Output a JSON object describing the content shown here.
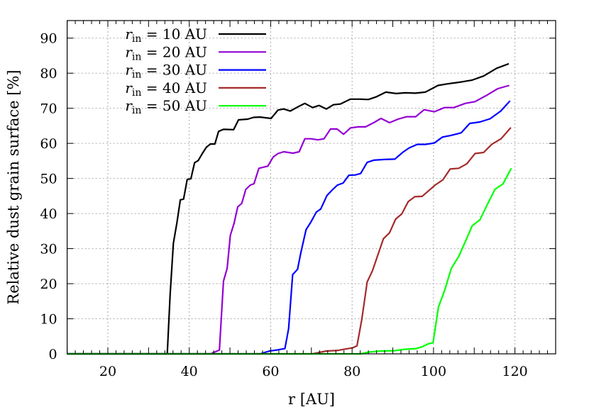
{
  "chart_data": {
    "type": "line",
    "title": "",
    "xlabel": "r [AU]",
    "ylabel": "Relative dust grain surface [%]",
    "xlim": [
      10,
      130
    ],
    "ylim": [
      0,
      95
    ],
    "xticks": [
      20,
      40,
      60,
      80,
      100,
      120
    ],
    "yticks": [
      0,
      10,
      20,
      30,
      40,
      50,
      60,
      70,
      80,
      90
    ],
    "grid": true,
    "legend_position": "top-left",
    "series": [
      {
        "name": "r_in = 10 AU",
        "color": "#000000",
        "x": [
          10,
          34.6,
          35.3,
          36.1,
          37.0,
          37.8,
          38.6,
          39.5,
          40.4,
          41.3,
          42.2,
          43.2,
          44.2,
          45.2,
          46.3,
          47.2,
          48.4,
          50.9,
          52.1,
          54.4,
          55.8,
          57.4,
          60.1,
          61.8,
          63.2,
          64.8,
          67.0,
          68.4,
          70.3,
          71.9,
          73.7,
          75.4,
          77.1,
          79.6,
          81.8,
          84.0,
          86.0,
          88.3,
          90.8,
          93.1,
          95.6,
          98.0,
          101.1,
          103.6,
          106.8,
          109.4,
          112.3,
          115.5,
          118.5
        ],
        "y": [
          0,
          0,
          16.7,
          31.5,
          37.6,
          43.9,
          44.1,
          49.7,
          49.9,
          54.5,
          55.1,
          57.1,
          58.9,
          59.8,
          59.8,
          63.4,
          64.0,
          63.9,
          66.7,
          66.9,
          67.4,
          67.5,
          67.1,
          69.5,
          69.8,
          69.2,
          70.6,
          71.4,
          70.2,
          70.8,
          69.8,
          71.0,
          71.2,
          72.6,
          72.6,
          72.5,
          73.3,
          74.6,
          74.2,
          74.4,
          74.3,
          74.6,
          76.5,
          77.0,
          77.5,
          78.0,
          79.2,
          81.4,
          82.7
        ]
      },
      {
        "name": "r_in = 20 AU",
        "color": "#9400D3",
        "x": [
          10,
          45.2,
          47.4,
          48.4,
          49.3,
          50.1,
          51.0,
          51.9,
          52.9,
          53.9,
          55.0,
          55.9,
          57.1,
          59.3,
          60.6,
          61.8,
          63.2,
          65.5,
          67.0,
          68.4,
          69.9,
          71.6,
          73.1,
          74.7,
          76.3,
          77.9,
          79.6,
          81.5,
          83.3,
          85.3,
          87.1,
          89.2,
          91.3,
          93.4,
          95.6,
          97.7,
          100.2,
          102.7,
          105.0,
          107.8,
          110.2,
          112.9,
          115.8,
          118.6
        ],
        "y": [
          0,
          0,
          1.1,
          20.7,
          24.4,
          33.8,
          37.2,
          41.9,
          42.9,
          46.9,
          48.1,
          48.5,
          52.9,
          53.5,
          56.1,
          57.1,
          57.6,
          57.2,
          57.6,
          61.3,
          61.3,
          61.0,
          61.3,
          64.1,
          64.1,
          62.6,
          64.4,
          64.7,
          64.7,
          65.9,
          67.1,
          65.9,
          66.9,
          67.6,
          67.6,
          69.6,
          69.0,
          70.2,
          70.2,
          71.4,
          71.9,
          73.6,
          75.6,
          76.5
        ]
      },
      {
        "name": "r_in = 30 AU",
        "color": "#0000FF",
        "x": [
          10,
          57.4,
          59.7,
          61.5,
          63.5,
          64.4,
          65.4,
          66.6,
          67.4,
          68.7,
          69.9,
          71.2,
          72.3,
          73.8,
          75.1,
          76.4,
          77.8,
          79.2,
          80.8,
          82.1,
          83.7,
          85.3,
          87.9,
          90.5,
          92.4,
          94.0,
          96.0,
          98.0,
          100.2,
          102.2,
          104.4,
          106.8,
          108.9,
          111.4,
          113.9,
          116.5,
          118.8
        ],
        "y": [
          0,
          0,
          0.8,
          1.1,
          1.5,
          7.2,
          22.6,
          24.1,
          28.8,
          35.4,
          37.6,
          40.4,
          41.3,
          45.1,
          46.7,
          48.1,
          48.7,
          50.9,
          51.0,
          51.4,
          54.6,
          55.2,
          55.4,
          55.5,
          57.4,
          58.7,
          59.7,
          59.7,
          60.1,
          61.8,
          62.3,
          63.0,
          65.7,
          66.1,
          67.0,
          69.2,
          72.1
        ]
      },
      {
        "name": "r_in = 40 AU",
        "color": "#A52A2A",
        "x": [
          10,
          70.2,
          73.7,
          76.6,
          78.0,
          80.1,
          81.2,
          82.4,
          83.7,
          85.0,
          86.3,
          87.7,
          89.2,
          90.7,
          92.2,
          93.8,
          95.4,
          97.2,
          98.6,
          100.4,
          102.3,
          104.1,
          106.2,
          108.2,
          110.2,
          112.3,
          114.3,
          116.6,
          119.0
        ],
        "y": [
          0,
          0,
          0.8,
          1.0,
          1.3,
          1.7,
          2.3,
          9.9,
          20.5,
          23.7,
          28.1,
          32.8,
          34.5,
          38.4,
          39.9,
          43.4,
          44.8,
          44.9,
          46.3,
          48.1,
          49.6,
          52.7,
          52.9,
          54.2,
          57.1,
          57.4,
          59.7,
          61.3,
          64.5
        ]
      },
      {
        "name": "r_in = 50 AU",
        "color": "#00FF00",
        "x": [
          10,
          82.1,
          84.1,
          87.0,
          90.5,
          92.8,
          95.7,
          97.2,
          98.6,
          99.9,
          101.2,
          102.7,
          104.4,
          106.2,
          107.9,
          109.5,
          111.4,
          113.1,
          115.1,
          117.1,
          119.1
        ],
        "y": [
          0,
          0,
          0.5,
          0.8,
          0.9,
          1.3,
          1.5,
          2.0,
          2.8,
          3.2,
          13.3,
          18.0,
          24.4,
          27.8,
          32.2,
          36.5,
          38.2,
          42.3,
          46.9,
          48.5,
          52.9
        ]
      }
    ]
  }
}
